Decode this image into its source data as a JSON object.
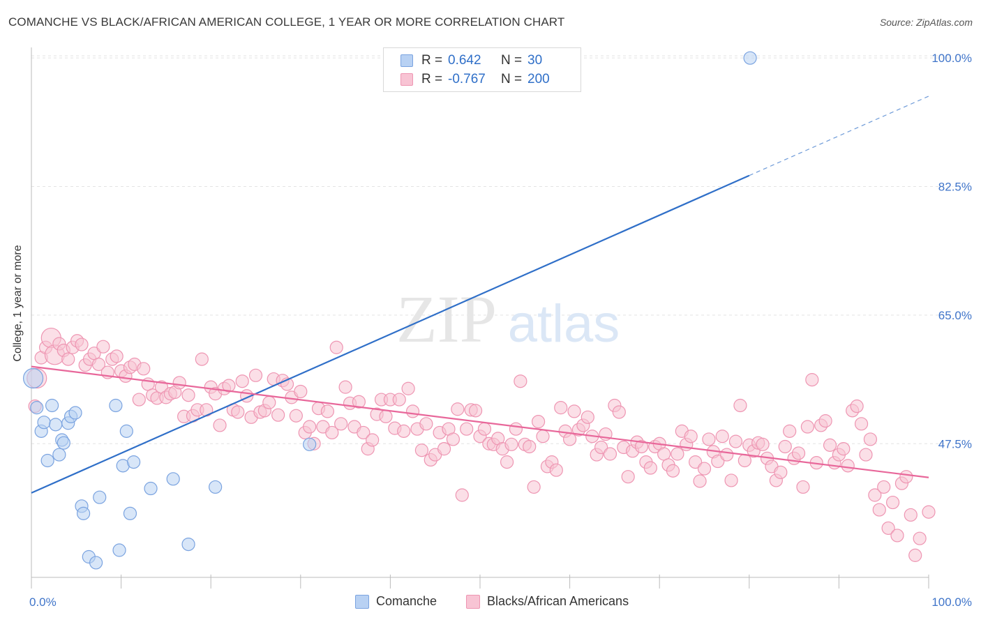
{
  "title": "COMANCHE VS BLACK/AFRICAN AMERICAN COLLEGE, 1 YEAR OR MORE CORRELATION CHART",
  "source": "Source: ZipAtlas.com",
  "watermark": {
    "zip": "ZIP",
    "atlas": "atlas"
  },
  "legend": {
    "rows": [
      {
        "r_label": "R =",
        "r_value": "0.642",
        "n_label": "N =",
        "n_value": "30"
      },
      {
        "r_label": "R =",
        "r_value": "-0.767",
        "n_label": "N =",
        "n_value": "200"
      }
    ]
  },
  "bottom_legend": [
    "Comanche",
    "Blacks/African Americans"
  ],
  "colors": {
    "blue_fill": "#b8d1f3",
    "blue_stroke": "#7aa3e0",
    "blue_line": "#2f6fc8",
    "pink_fill": "#f8c4d4",
    "pink_stroke": "#ee95b2",
    "pink_line": "#e8679a",
    "axis_text": "#3f74c9",
    "grid": "#e3e3e3"
  },
  "chart_data": {
    "type": "scatter",
    "title": "COMANCHE VS BLACK/AFRICAN AMERICAN COLLEGE, 1 YEAR OR MORE CORRELATION CHART",
    "xlabel": "",
    "ylabel": "College, 1 year or more",
    "xlim": [
      0,
      100
    ],
    "ylim": [
      29.3,
      102.2
    ],
    "x_tick_labels": [
      "0.0%",
      "100.0%"
    ],
    "y_ticks": [
      47.5,
      65.0,
      82.5,
      100.0
    ],
    "y_tick_labels": [
      "47.5%",
      "65.0%",
      "82.5%",
      "100.0%"
    ],
    "grid": true,
    "legend_position": "top-center",
    "series": [
      {
        "name": "Comanche",
        "R": 0.642,
        "N": 30,
        "trend": {
          "x0": 0,
          "y0": 40.8,
          "x1": 80,
          "y1": 84.0,
          "dashed_to_x": 100,
          "dashed_to_y": 94.8
        },
        "points": [
          [
            0.2,
            56.4
          ],
          [
            0.6,
            52.4
          ],
          [
            1.1,
            49.2
          ],
          [
            1.4,
            50.4
          ],
          [
            1.8,
            45.2
          ],
          [
            2.3,
            52.7
          ],
          [
            2.7,
            50.1
          ],
          [
            3.1,
            46.0
          ],
          [
            3.4,
            48.0
          ],
          [
            3.6,
            47.6
          ],
          [
            4.1,
            50.3
          ],
          [
            4.4,
            51.2
          ],
          [
            4.9,
            51.7
          ],
          [
            5.6,
            39.0
          ],
          [
            5.8,
            38.0
          ],
          [
            6.4,
            32.1
          ],
          [
            7.2,
            31.3
          ],
          [
            7.6,
            40.2
          ],
          [
            9.4,
            52.7
          ],
          [
            9.8,
            33.0
          ],
          [
            10.2,
            44.5
          ],
          [
            10.6,
            49.2
          ],
          [
            11.0,
            38.0
          ],
          [
            11.4,
            45.0
          ],
          [
            13.3,
            41.4
          ],
          [
            15.8,
            42.7
          ],
          [
            17.5,
            33.8
          ],
          [
            20.5,
            41.6
          ],
          [
            31.0,
            47.4
          ],
          [
            80.1,
            100.0
          ]
        ]
      },
      {
        "name": "Blacks/African Americans",
        "R": -0.767,
        "N": 200,
        "trend": {
          "x0": 0,
          "y0": 58.0,
          "x1": 100,
          "y1": 42.9
        },
        "points": [
          [
            0.4,
            52.6
          ],
          [
            0.6,
            56.4
          ],
          [
            1.1,
            59.2
          ],
          [
            1.6,
            60.6
          ],
          [
            2.2,
            61.9
          ],
          [
            2.6,
            59.6
          ],
          [
            3.1,
            61.1
          ],
          [
            3.6,
            60.2
          ],
          [
            4.1,
            59.0
          ],
          [
            4.6,
            60.6
          ],
          [
            5.1,
            61.5
          ],
          [
            5.6,
            61.0
          ],
          [
            6.0,
            58.2
          ],
          [
            6.5,
            59.0
          ],
          [
            7.0,
            59.8
          ],
          [
            7.5,
            58.3
          ],
          [
            8.0,
            60.7
          ],
          [
            8.5,
            57.2
          ],
          [
            9.0,
            59.0
          ],
          [
            9.5,
            59.4
          ],
          [
            10.0,
            57.4
          ],
          [
            10.5,
            56.7
          ],
          [
            11.0,
            57.9
          ],
          [
            11.5,
            58.3
          ],
          [
            12.0,
            53.5
          ],
          [
            12.5,
            57.7
          ],
          [
            13.0,
            55.6
          ],
          [
            13.5,
            54.1
          ],
          [
            14.0,
            53.7
          ],
          [
            14.5,
            55.2
          ],
          [
            15.0,
            53.8
          ],
          [
            15.5,
            54.3
          ],
          [
            16.0,
            54.5
          ],
          [
            16.5,
            55.8
          ],
          [
            17.0,
            51.2
          ],
          [
            17.5,
            54.1
          ],
          [
            18.0,
            51.3
          ],
          [
            18.5,
            52.1
          ],
          [
            19.0,
            59.0
          ],
          [
            19.5,
            52.1
          ],
          [
            20.0,
            55.2
          ],
          [
            20.5,
            54.3
          ],
          [
            21.0,
            50.0
          ],
          [
            21.5,
            55.0
          ],
          [
            22.0,
            55.4
          ],
          [
            22.5,
            52.1
          ],
          [
            23.0,
            51.8
          ],
          [
            23.5,
            56.0
          ],
          [
            24.0,
            54.0
          ],
          [
            24.5,
            51.1
          ],
          [
            25.0,
            56.8
          ],
          [
            25.5,
            51.8
          ],
          [
            26.0,
            52.0
          ],
          [
            26.5,
            53.1
          ],
          [
            27.0,
            56.3
          ],
          [
            27.5,
            51.4
          ],
          [
            28.0,
            56.1
          ],
          [
            28.5,
            55.6
          ],
          [
            29.0,
            53.8
          ],
          [
            29.5,
            51.3
          ],
          [
            30.0,
            54.6
          ],
          [
            30.5,
            49.0
          ],
          [
            31.0,
            49.8
          ],
          [
            31.5,
            47.5
          ],
          [
            32.0,
            52.3
          ],
          [
            32.5,
            49.8
          ],
          [
            33.0,
            51.9
          ],
          [
            33.5,
            49.0
          ],
          [
            34.0,
            60.6
          ],
          [
            34.5,
            50.2
          ],
          [
            35.0,
            55.2
          ],
          [
            35.5,
            53.0
          ],
          [
            36.0,
            49.8
          ],
          [
            36.5,
            53.2
          ],
          [
            37.0,
            49.0
          ],
          [
            37.5,
            46.8
          ],
          [
            38.0,
            48.0
          ],
          [
            38.5,
            51.5
          ],
          [
            39.0,
            53.5
          ],
          [
            39.5,
            51.2
          ],
          [
            40.0,
            53.5
          ],
          [
            40.5,
            49.6
          ],
          [
            41.0,
            53.5
          ],
          [
            41.5,
            49.2
          ],
          [
            42.0,
            55.0
          ],
          [
            42.5,
            51.9
          ],
          [
            43.0,
            49.5
          ],
          [
            43.5,
            46.6
          ],
          [
            44.0,
            50.2
          ],
          [
            44.5,
            45.3
          ],
          [
            45.0,
            46.0
          ],
          [
            45.5,
            49.0
          ],
          [
            46.0,
            46.8
          ],
          [
            46.5,
            49.5
          ],
          [
            47.0,
            48.1
          ],
          [
            47.5,
            52.2
          ],
          [
            48.0,
            40.5
          ],
          [
            48.5,
            49.5
          ],
          [
            49.0,
            52.1
          ],
          [
            49.5,
            52.0
          ],
          [
            50.0,
            48.5
          ],
          [
            50.5,
            49.5
          ],
          [
            51.0,
            47.5
          ],
          [
            51.5,
            47.4
          ],
          [
            52.0,
            48.2
          ],
          [
            52.5,
            46.8
          ],
          [
            53.0,
            45.0
          ],
          [
            53.5,
            47.4
          ],
          [
            54.0,
            49.5
          ],
          [
            54.5,
            56.0
          ],
          [
            55.0,
            47.4
          ],
          [
            55.5,
            47.1
          ],
          [
            56.0,
            41.6
          ],
          [
            56.5,
            50.5
          ],
          [
            57.0,
            48.5
          ],
          [
            57.5,
            44.4
          ],
          [
            58.0,
            45.0
          ],
          [
            58.5,
            43.9
          ],
          [
            59.0,
            52.4
          ],
          [
            59.5,
            49.2
          ],
          [
            60.0,
            48.1
          ],
          [
            60.5,
            51.9
          ],
          [
            61.0,
            49.4
          ],
          [
            61.5,
            50.0
          ],
          [
            62.0,
            51.1
          ],
          [
            62.5,
            48.5
          ],
          [
            63.0,
            46.0
          ],
          [
            63.5,
            47.0
          ],
          [
            64.0,
            48.8
          ],
          [
            64.5,
            46.1
          ],
          [
            65.0,
            52.7
          ],
          [
            65.5,
            51.8
          ],
          [
            66.0,
            47.0
          ],
          [
            66.5,
            43.0
          ],
          [
            67.0,
            46.5
          ],
          [
            67.5,
            47.7
          ],
          [
            68.0,
            47.1
          ],
          [
            68.5,
            45.0
          ],
          [
            69.0,
            44.2
          ],
          [
            69.5,
            47.1
          ],
          [
            70.0,
            47.5
          ],
          [
            70.5,
            46.1
          ],
          [
            71.0,
            44.6
          ],
          [
            71.5,
            43.8
          ],
          [
            72.0,
            46.1
          ],
          [
            72.5,
            49.2
          ],
          [
            73.0,
            47.4
          ],
          [
            73.5,
            48.5
          ],
          [
            74.0,
            45.0
          ],
          [
            74.5,
            42.4
          ],
          [
            75.0,
            44.1
          ],
          [
            75.5,
            48.1
          ],
          [
            76.0,
            46.4
          ],
          [
            76.5,
            45.1
          ],
          [
            77.0,
            48.5
          ],
          [
            77.5,
            46.0
          ],
          [
            78.0,
            42.5
          ],
          [
            78.5,
            47.8
          ],
          [
            79.0,
            52.7
          ],
          [
            79.5,
            45.2
          ],
          [
            80.0,
            47.3
          ],
          [
            80.5,
            46.5
          ],
          [
            81.0,
            47.6
          ],
          [
            81.5,
            47.4
          ],
          [
            82.0,
            45.5
          ],
          [
            82.5,
            44.4
          ],
          [
            83.0,
            42.5
          ],
          [
            83.5,
            43.6
          ],
          [
            84.0,
            47.1
          ],
          [
            84.5,
            49.2
          ],
          [
            85.0,
            45.5
          ],
          [
            85.5,
            46.2
          ],
          [
            86.0,
            41.6
          ],
          [
            86.5,
            49.8
          ],
          [
            87.0,
            56.2
          ],
          [
            87.5,
            44.9
          ],
          [
            88.0,
            50.0
          ],
          [
            88.5,
            50.6
          ],
          [
            89.0,
            47.3
          ],
          [
            89.5,
            44.9
          ],
          [
            90.0,
            46.0
          ],
          [
            90.5,
            46.8
          ],
          [
            91.0,
            44.5
          ],
          [
            91.5,
            52.0
          ],
          [
            92.0,
            52.6
          ],
          [
            92.5,
            50.2
          ],
          [
            93.0,
            46.0
          ],
          [
            93.5,
            48.1
          ],
          [
            94.0,
            40.5
          ],
          [
            94.5,
            38.5
          ],
          [
            95.0,
            41.6
          ],
          [
            95.5,
            36.0
          ],
          [
            96.0,
            39.5
          ],
          [
            96.5,
            35.0
          ],
          [
            97.0,
            42.1
          ],
          [
            97.5,
            43.0
          ],
          [
            98.0,
            37.8
          ],
          [
            98.5,
            32.3
          ],
          [
            99.0,
            34.6
          ],
          [
            100.0,
            38.2
          ]
        ]
      }
    ]
  }
}
